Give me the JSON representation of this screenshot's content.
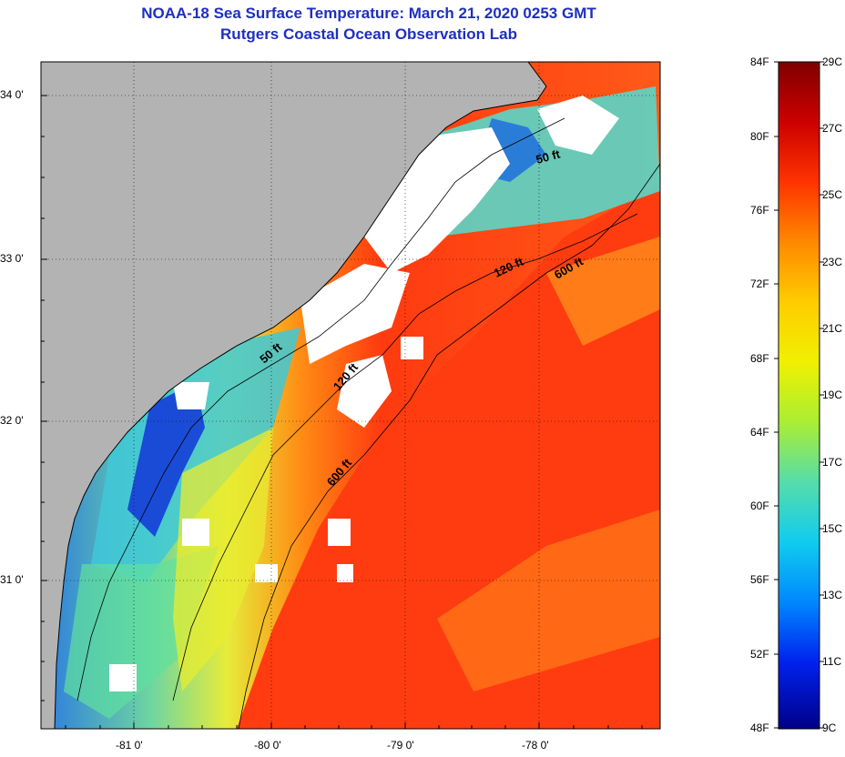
{
  "title": {
    "line1": "NOAA-18 Sea Surface Temperature:  March 21, 2020 0253 GMT",
    "line2": "Rutgers Coastal Ocean Observation Lab"
  },
  "map": {
    "lat_labels": [
      "34 0'",
      "33 0'",
      "32 0'",
      "31 0'"
    ],
    "lon_labels": [
      "-81 0'",
      "-80 0'",
      "-79 0'",
      "-78 0'"
    ],
    "contour_labels": [
      "50 ft",
      "120 ft",
      "600 ft",
      "50 ft",
      "120 ft",
      "600 ft"
    ],
    "colors": {
      "land": "#b3b3b3",
      "cloud": "#ffffff",
      "border": "#000000",
      "grid": "#000000"
    }
  },
  "colorbar": {
    "fahrenheit": [
      "84F",
      "80F",
      "76F",
      "72F",
      "68F",
      "64F",
      "60F",
      "56F",
      "52F",
      "48F"
    ],
    "celsius": [
      "29C",
      "27C",
      "25C",
      "23C",
      "21C",
      "19C",
      "17C",
      "15C",
      "13C",
      "11C",
      "9C"
    ],
    "gradient": [
      "#7f0000",
      "#cc0000",
      "#ff3300",
      "#ff8800",
      "#ffcc00",
      "#f0f000",
      "#aaee33",
      "#55ddaa",
      "#11ccee",
      "#0088ff",
      "#0022ee",
      "#000088"
    ]
  }
}
